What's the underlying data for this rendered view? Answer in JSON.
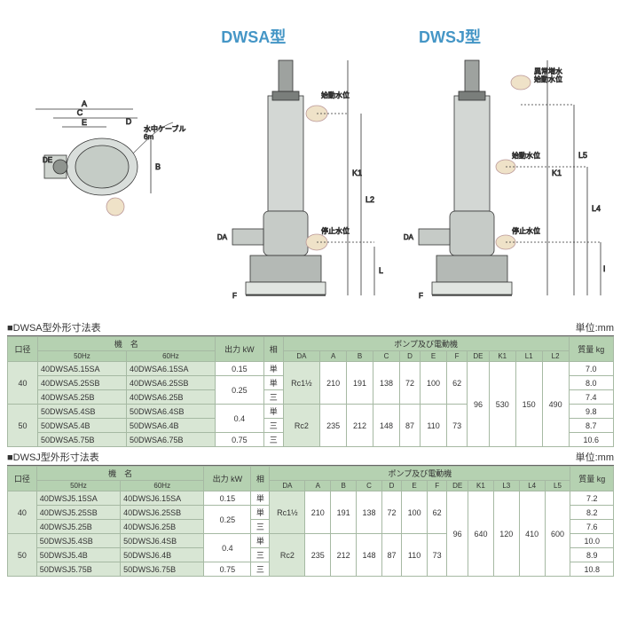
{
  "diagram_labels": {
    "left_title": "",
    "center_title": "DWSA型",
    "right_title": "DWSJ型",
    "cable": "水中ケーブル\n6m",
    "start_level": "始動水位",
    "stop_level": "停止水位",
    "abnormal_level": "異常増水\n始動水位"
  },
  "table1": {
    "section": "■DWSA型外形寸法表",
    "unit": "単位:mm",
    "cols": {
      "dia": "口径",
      "model": "機　名",
      "hz50": "50Hz",
      "hz60": "60Hz",
      "output": "出力\nkW",
      "phase": "相",
      "pump_motor": "ポンプ及び電動機",
      "DA": "DA",
      "A": "A",
      "B": "B",
      "C": "C",
      "D": "D",
      "E": "E",
      "F": "F",
      "DE": "DE",
      "K1": "K1",
      "L1": "L1",
      "L2": "L2",
      "mass": "質量\nkg"
    },
    "rows": [
      {
        "dia": "40",
        "m50": "40DWSA5.15SA",
        "m60": "40DWSA6.15SA",
        "kw": "0.15",
        "ph": "単",
        "DA": "Rc1½",
        "A": "210",
        "B": "191",
        "C": "138",
        "D": "72",
        "E": "100",
        "F": "62",
        "DE": "96",
        "K1": "530",
        "L1": "150",
        "L2": "490",
        "kg": "7.0"
      },
      {
        "dia": "",
        "m50": "40DWSA5.25SB",
        "m60": "40DWSA6.25SB",
        "kw": "0.25",
        "ph": "単",
        "DA": "",
        "A": "",
        "B": "",
        "C": "",
        "D": "",
        "E": "",
        "F": "",
        "DE": "",
        "K1": "",
        "L1": "",
        "L2": "",
        "kg": "8.0"
      },
      {
        "dia": "",
        "m50": "40DWSA5.25B",
        "m60": "40DWSA6.25B",
        "kw": "",
        "ph": "三",
        "DA": "",
        "A": "",
        "B": "",
        "C": "",
        "D": "",
        "E": "",
        "F": "",
        "DE": "",
        "K1": "",
        "L1": "",
        "L2": "",
        "kg": "7.4"
      },
      {
        "dia": "50",
        "m50": "50DWSA5.4SB",
        "m60": "50DWSA6.4SB",
        "kw": "0.4",
        "ph": "単",
        "DA": "Rc2",
        "A": "235",
        "B": "212",
        "C": "148",
        "D": "87",
        "E": "110",
        "F": "73",
        "DE": "",
        "K1": "",
        "L1": "",
        "L2": "",
        "kg": "9.8"
      },
      {
        "dia": "",
        "m50": "50DWSA5.4B",
        "m60": "50DWSA6.4B",
        "kw": "",
        "ph": "三",
        "DA": "",
        "A": "",
        "B": "",
        "C": "",
        "D": "",
        "E": "",
        "F": "",
        "DE": "",
        "K1": "",
        "L1": "",
        "L2": "",
        "kg": "8.7"
      },
      {
        "dia": "",
        "m50": "50DWSA5.75B",
        "m60": "50DWSA6.75B",
        "kw": "0.75",
        "ph": "三",
        "DA": "",
        "A": "",
        "B": "",
        "C": "",
        "D": "",
        "E": "",
        "F": "",
        "DE": "",
        "K1": "",
        "L1": "",
        "L2": "",
        "kg": "10.6"
      }
    ]
  },
  "table2": {
    "section": "■DWSJ型外形寸法表",
    "unit": "単位:mm",
    "cols": {
      "dia": "口径",
      "model": "機　名",
      "hz50": "50Hz",
      "hz60": "60Hz",
      "output": "出力\nkW",
      "phase": "相",
      "pump_motor": "ポンプ及び電動機",
      "DA": "DA",
      "A": "A",
      "B": "B",
      "C": "C",
      "D": "D",
      "E": "E",
      "F": "F",
      "DE": "DE",
      "K1": "K1",
      "L3": "L3",
      "L4": "L4",
      "L5": "L5",
      "mass": "質量\nkg"
    },
    "rows": [
      {
        "dia": "40",
        "m50": "40DWSJ5.15SA",
        "m60": "40DWSJ6.15SA",
        "kw": "0.15",
        "ph": "単",
        "DA": "Rc1½",
        "A": "210",
        "B": "191",
        "C": "138",
        "D": "72",
        "E": "100",
        "F": "62",
        "DE": "96",
        "K1": "640",
        "L3": "120",
        "L4": "410",
        "L5": "600",
        "kg": "7.2"
      },
      {
        "dia": "",
        "m50": "40DWSJ5.25SB",
        "m60": "40DWSJ6.25SB",
        "kw": "0.25",
        "ph": "単",
        "DA": "",
        "A": "",
        "B": "",
        "C": "",
        "D": "",
        "E": "",
        "F": "",
        "DE": "",
        "K1": "",
        "L3": "",
        "L4": "",
        "L5": "",
        "kg": "8.2"
      },
      {
        "dia": "",
        "m50": "40DWSJ5.25B",
        "m60": "40DWSJ6.25B",
        "kw": "",
        "ph": "三",
        "DA": "",
        "A": "",
        "B": "",
        "C": "",
        "D": "",
        "E": "",
        "F": "",
        "DE": "",
        "K1": "",
        "L3": "",
        "L4": "",
        "L5": "",
        "kg": "7.6"
      },
      {
        "dia": "50",
        "m50": "50DWSJ5.4SB",
        "m60": "50DWSJ6.4SB",
        "kw": "0.4",
        "ph": "単",
        "DA": "Rc2",
        "A": "235",
        "B": "212",
        "C": "148",
        "D": "87",
        "E": "110",
        "F": "73",
        "DE": "",
        "K1": "",
        "L3": "",
        "L4": "",
        "L5": "",
        "kg": "10.0"
      },
      {
        "dia": "",
        "m50": "50DWSJ5.4B",
        "m60": "50DWSJ6.4B",
        "kw": "",
        "ph": "三",
        "DA": "",
        "A": "",
        "B": "",
        "C": "",
        "D": "",
        "E": "",
        "F": "",
        "DE": "",
        "K1": "",
        "L3": "",
        "L4": "",
        "L5": "",
        "kg": "8.9"
      },
      {
        "dia": "",
        "m50": "50DWSJ5.75B",
        "m60": "50DWSJ6.75B",
        "kw": "0.75",
        "ph": "三",
        "DA": "",
        "A": "",
        "B": "",
        "C": "",
        "D": "",
        "E": "",
        "F": "",
        "DE": "",
        "K1": "",
        "L3": "",
        "L4": "",
        "L5": "",
        "kg": "10.8"
      }
    ]
  },
  "style": {
    "title_color": "#4596c6",
    "header_bg": "#b5d1b1",
    "cell_bg": "#d8e6d4",
    "border": "#a6b9a3"
  }
}
